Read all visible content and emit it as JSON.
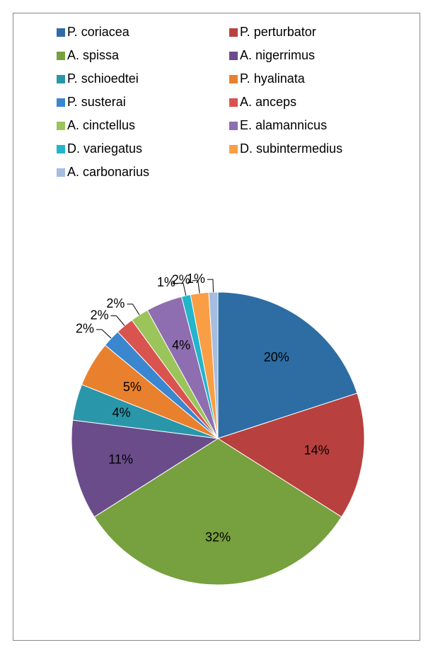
{
  "chart_data": {
    "type": "pie",
    "categories": [
      "P. coriacea",
      "P. perturbator",
      "A. spissa",
      "A. nigerrimus",
      "P. schioedtei",
      "P. hyalinata",
      "P. susterai",
      "A. anceps",
      "A. cinctellus",
      "E. alamannicus",
      "D. variegatus",
      "D. subintermedius",
      "A. carbonarius"
    ],
    "values": [
      20,
      14,
      32,
      11,
      4,
      5,
      2,
      2,
      2,
      4,
      1,
      2,
      1
    ],
    "value_labels": [
      "20%",
      "14%",
      "32%",
      "11%",
      "4%",
      "5%",
      "2%",
      "2%",
      "2%",
      "4%",
      "1%",
      "2%",
      "1%"
    ],
    "colors": [
      "#2E6DA4",
      "#B8403E",
      "#77A03E",
      "#6A4C8B",
      "#2997A9",
      "#E8802E",
      "#3A87CF",
      "#D9534F",
      "#9BC45A",
      "#8E6EB0",
      "#22B5CC",
      "#F99E45",
      "#A5BDE0"
    ],
    "legend": "top"
  }
}
